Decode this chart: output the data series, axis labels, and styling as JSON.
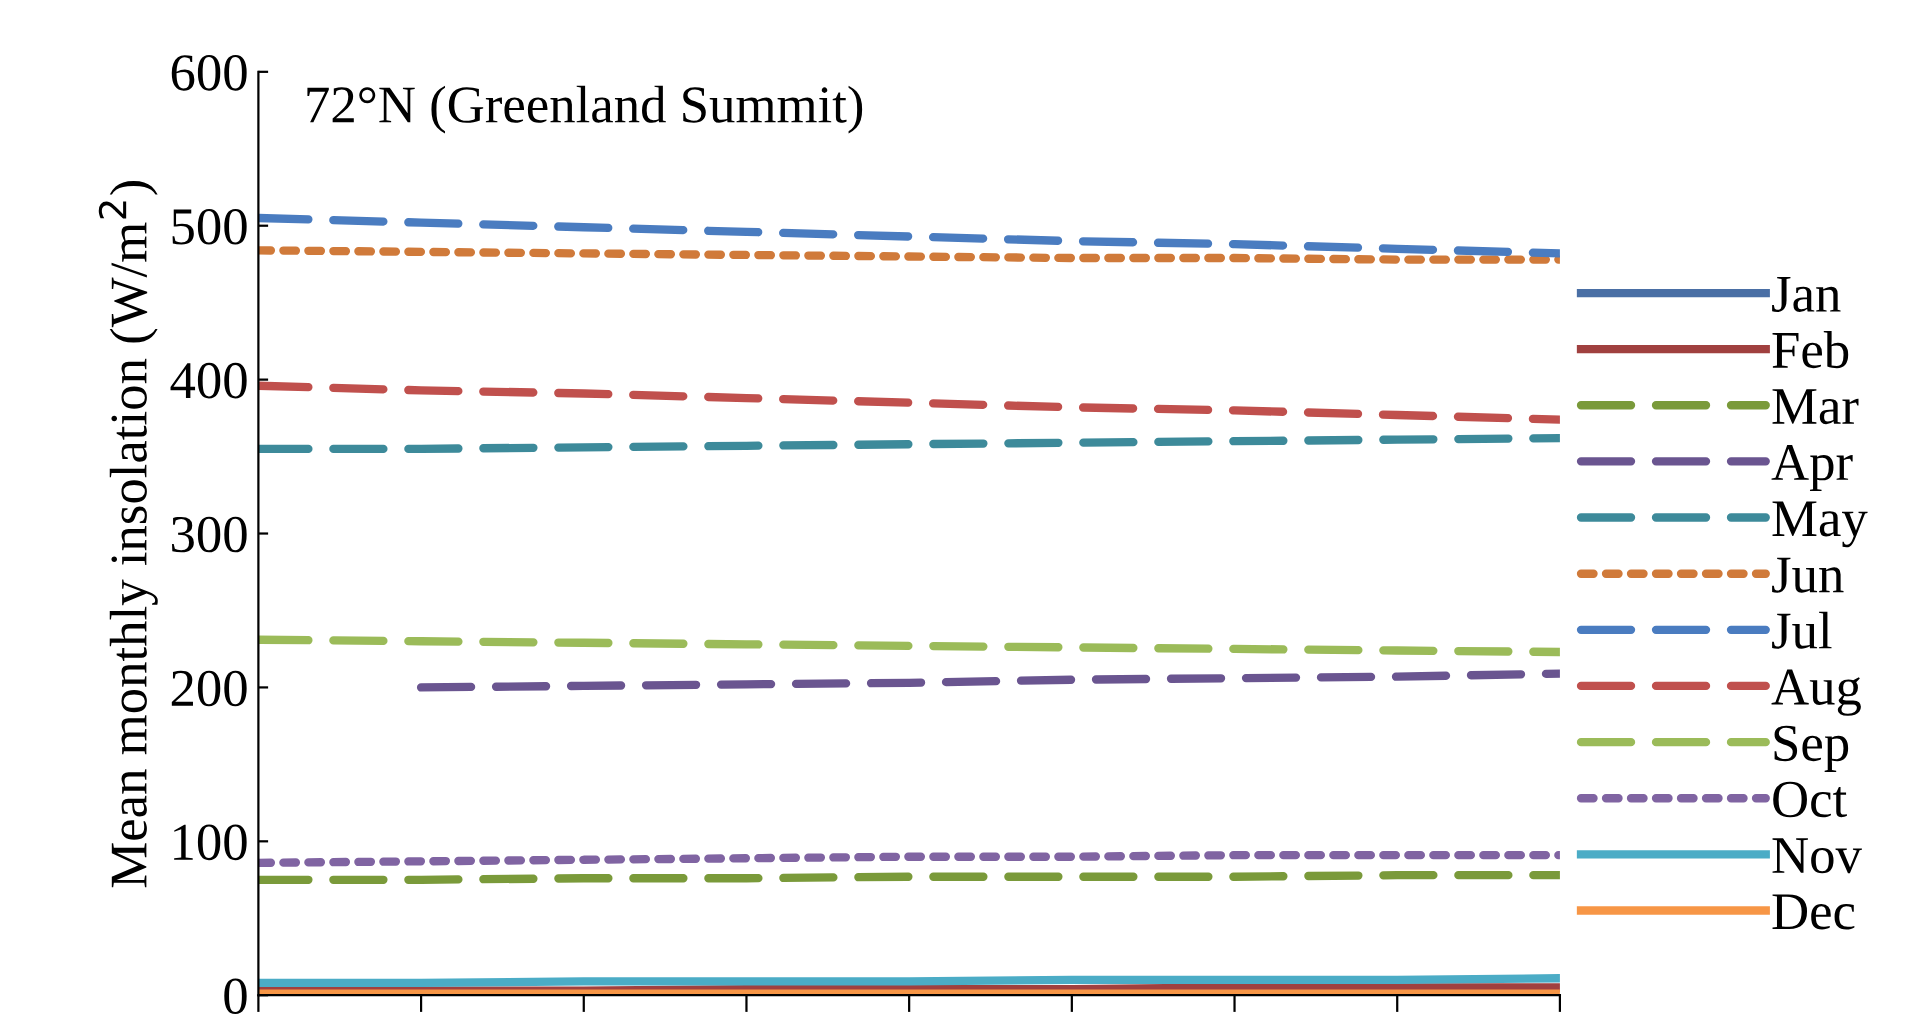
{
  "chart_data": {
    "type": "line",
    "title": "72°N (Greenland Summit)",
    "ylabel": "Mean monthly insolation (W/m$^{2}$)",
    "categories": [
      null,
      null,
      null,
      null,
      null,
      null,
      null,
      null,
      null
    ],
    "ylim": [
      0,
      600
    ],
    "yticks": [
      0,
      100,
      200,
      300,
      400,
      500,
      600
    ],
    "tick_labels": "y",
    "grid": false,
    "legend": "right",
    "marker": "none",
    "series": [
      {
        "name": "Jan",
        "color": "#4a6fa5",
        "line_style": "solid",
        "values": [
          null,
          null,
          null,
          null,
          null,
          null,
          null,
          null,
          null
        ]
      },
      {
        "name": "Feb",
        "color": "#a0403f",
        "line_style": "solid",
        "values": [
          3,
          3,
          3,
          4,
          4,
          4,
          5,
          5,
          5
        ]
      },
      {
        "name": "Mar",
        "color": "#7a9a3a",
        "line_style": "dashed",
        "values": [
          75,
          75,
          76,
          76,
          77,
          77,
          77,
          78,
          78
        ]
      },
      {
        "name": "Apr",
        "color": "#6a5590",
        "line_style": "dashed",
        "values": [
          null,
          200,
          201,
          202,
          203,
          205,
          206,
          207,
          209
        ]
      },
      {
        "name": "May",
        "color": "#3d8a9a",
        "line_style": "dashed",
        "values": [
          355,
          355,
          356,
          357,
          358,
          359,
          360,
          361,
          362
        ]
      },
      {
        "name": "Jun",
        "color": "#d07a3a",
        "line_style": "dotted",
        "values": [
          484,
          483,
          482,
          481,
          480,
          479,
          479,
          478,
          478
        ]
      },
      {
        "name": "Jul",
        "color": "#4a7cc0",
        "line_style": "dashed",
        "values": [
          505,
          502,
          499,
          496,
          493,
          490,
          488,
          485,
          482
        ]
      },
      {
        "name": "Aug",
        "color": "#c0504d",
        "line_style": "dashed",
        "values": [
          396,
          393,
          391,
          388,
          385,
          382,
          380,
          377,
          374
        ]
      },
      {
        "name": "Sep",
        "color": "#9bbb59",
        "line_style": "dashed",
        "values": [
          231,
          230,
          229,
          228,
          227,
          226,
          225,
          224,
          223
        ]
      },
      {
        "name": "Oct",
        "color": "#8064a2",
        "line_style": "dotted",
        "values": [
          86,
          87,
          88,
          89,
          90,
          90,
          91,
          91,
          91
        ]
      },
      {
        "name": "Nov",
        "color": "#4bacc6",
        "line_style": "solid",
        "values": [
          8,
          8,
          9,
          9,
          9,
          10,
          10,
          10,
          11
        ]
      },
      {
        "name": "Dec",
        "color": "#f79646",
        "line_style": "solid",
        "values": [
          1,
          1,
          1,
          1,
          1,
          1,
          1,
          1,
          1
        ]
      }
    ]
  }
}
